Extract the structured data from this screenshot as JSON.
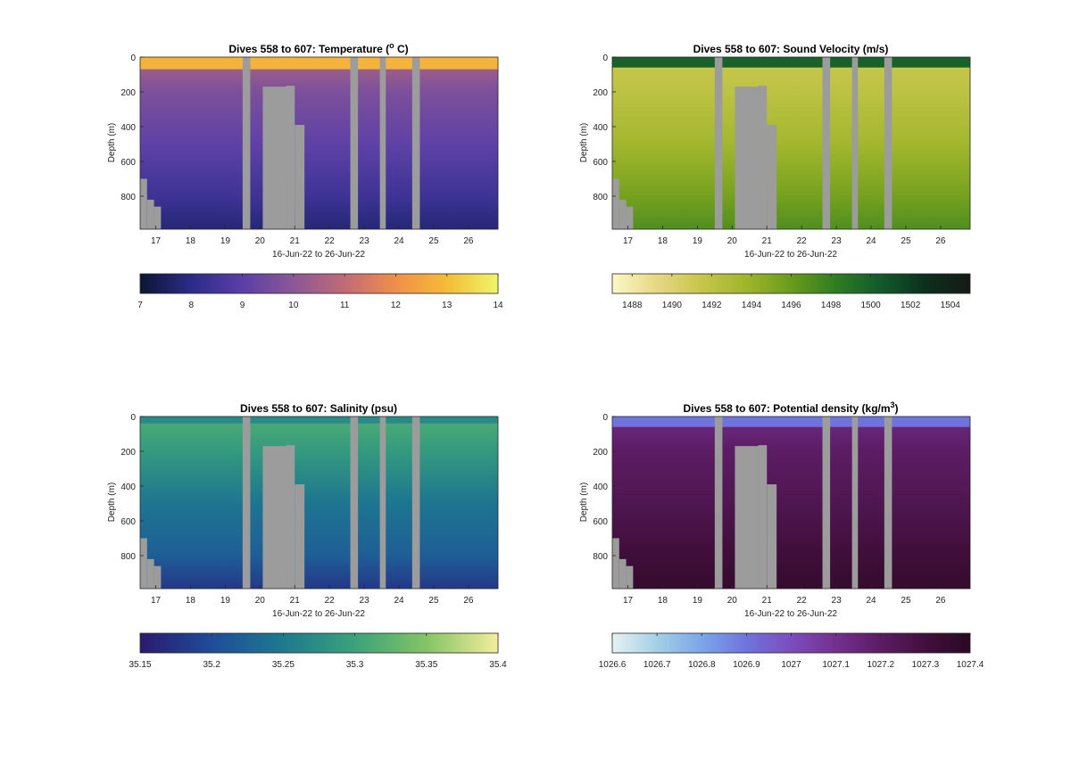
{
  "chart_data": [
    {
      "type": "heatmap",
      "title": "Dives 558 to 607: Temperature (",
      "title_sup": "o",
      "title_after": " C)",
      "xlabel": "16-Jun-22 to 26-Jun-22",
      "ylabel": "Depth (m)",
      "x_ticks": [
        "17",
        "18",
        "19",
        "20",
        "21",
        "22",
        "23",
        "24",
        "25",
        "26"
      ],
      "y_ticks": [
        "0",
        "200",
        "400",
        "600",
        "800"
      ],
      "xlim": [
        16.55,
        26.85
      ],
      "ylim": [
        0,
        990
      ],
      "surface_layer": {
        "depth_to": 70,
        "value": 12.8
      },
      "depth_profile": [
        {
          "depth": 70,
          "value": 10.3
        },
        {
          "depth": 200,
          "value": 9.7
        },
        {
          "depth": 500,
          "value": 9.1
        },
        {
          "depth": 800,
          "value": 8.4
        },
        {
          "depth": 990,
          "value": 7.8
        }
      ],
      "colorbar": {
        "min": 7,
        "max": 14,
        "tick_values": [
          7,
          8,
          9,
          10,
          11,
          12,
          13,
          14
        ],
        "tick_labels": [
          "7",
          "8",
          "9",
          "10",
          "11",
          "12",
          "13",
          "14"
        ],
        "colors": [
          "#0b1631",
          "#2c2b89",
          "#5a3fa8",
          "#8b5796",
          "#c06b75",
          "#f18e4a",
          "#f5bc37",
          "#eef56a"
        ]
      }
    },
    {
      "type": "heatmap",
      "title": "Dives 558 to 607: Sound Velocity (m/s)",
      "xlabel": "16-Jun-22 to 26-Jun-22",
      "ylabel": "Depth (m)",
      "x_ticks": [
        "17",
        "18",
        "19",
        "20",
        "21",
        "22",
        "23",
        "24",
        "25",
        "26"
      ],
      "y_ticks": [
        "0",
        "200",
        "400",
        "600",
        "800"
      ],
      "xlim": [
        16.55,
        26.85
      ],
      "ylim": [
        0,
        990
      ],
      "surface_layer": {
        "depth_to": 60,
        "value": 1500
      },
      "depth_profile": [
        {
          "depth": 60,
          "value": 1491.5
        },
        {
          "depth": 200,
          "value": 1492
        },
        {
          "depth": 500,
          "value": 1493.5
        },
        {
          "depth": 800,
          "value": 1495.5
        },
        {
          "depth": 990,
          "value": 1497
        }
      ],
      "colorbar": {
        "min": 1487,
        "max": 1505,
        "tick_values": [
          1488,
          1490,
          1492,
          1494,
          1496,
          1498,
          1500,
          1502,
          1504
        ],
        "tick_labels": [
          "1488",
          "1490",
          "1492",
          "1494",
          "1496",
          "1498",
          "1500",
          "1502",
          "1504"
        ],
        "colors": [
          "#fcf7c6",
          "#e5d884",
          "#c6c64a",
          "#9fb52a",
          "#6a9b1c",
          "#2f7d22",
          "#125a2c",
          "#0c2f1c",
          "#151a16"
        ]
      }
    },
    {
      "type": "heatmap",
      "title": "Dives 558 to 607: Salinity (psu)",
      "xlabel": "16-Jun-22 to 26-Jun-22",
      "ylabel": "Depth (m)",
      "x_ticks": [
        "17",
        "18",
        "19",
        "20",
        "21",
        "22",
        "23",
        "24",
        "25",
        "26"
      ],
      "y_ticks": [
        "0",
        "200",
        "400",
        "600",
        "800"
      ],
      "xlim": [
        16.55,
        26.85
      ],
      "ylim": [
        0,
        990
      ],
      "surface_layer": {
        "depth_to": 40,
        "value": 35.27
      },
      "depth_profile": [
        {
          "depth": 40,
          "value": 35.31
        },
        {
          "depth": 200,
          "value": 35.29
        },
        {
          "depth": 500,
          "value": 35.245
        },
        {
          "depth": 800,
          "value": 35.22
        },
        {
          "depth": 990,
          "value": 35.18
        }
      ],
      "colorbar": {
        "min": 35.15,
        "max": 35.4,
        "tick_values": [
          35.15,
          35.2,
          35.25,
          35.3,
          35.35,
          35.4
        ],
        "tick_labels": [
          "35.15",
          "35.2",
          "35.25",
          "35.3",
          "35.35",
          "35.4"
        ],
        "colors": [
          "#2a1a6e",
          "#1f4c9a",
          "#1d7a8f",
          "#3aa27a",
          "#84c466",
          "#f3ee9b"
        ]
      }
    },
    {
      "type": "heatmap",
      "title": "Dives 558 to 607: Potential density (kg/m",
      "title_sup": "3",
      "title_after": ")",
      "xlabel": "16-Jun-22 to 26-Jun-22",
      "ylabel": "Depth (m)",
      "x_ticks": [
        "17",
        "18",
        "19",
        "20",
        "21",
        "22",
        "23",
        "24",
        "25",
        "26"
      ],
      "y_ticks": [
        "0",
        "200",
        "400",
        "600",
        "800"
      ],
      "xlim": [
        16.55,
        26.85
      ],
      "ylim": [
        0,
        990
      ],
      "surface_layer": {
        "depth_to": 60,
        "value": 1026.9
      },
      "depth_profile": [
        {
          "depth": 60,
          "value": 1027.15
        },
        {
          "depth": 200,
          "value": 1027.2
        },
        {
          "depth": 500,
          "value": 1027.25
        },
        {
          "depth": 750,
          "value": 1027.3
        },
        {
          "depth": 990,
          "value": 1027.36
        }
      ],
      "colorbar": {
        "min": 1026.6,
        "max": 1027.4,
        "tick_values": [
          1026.6,
          1026.7,
          1026.8,
          1026.9,
          1027,
          1027.1,
          1027.2,
          1027.3,
          1027.4
        ],
        "tick_labels": [
          "1026.6",
          "1026.7",
          "1026.8",
          "1026.9",
          "1027",
          "1027.1",
          "1027.2",
          "1027.3",
          "1027.4"
        ],
        "colors": [
          "#e5f2f2",
          "#a4d0e6",
          "#7aa6ea",
          "#6f74dc",
          "#7c4cbd",
          "#74308f",
          "#5c1c64",
          "#420f3d",
          "#2a0822"
        ]
      }
    }
  ],
  "shared": {
    "no_data_color": "#9c9c9c",
    "gap_bands": [
      [
        19.5,
        19.72
      ],
      [
        20.08,
        20.75
      ],
      [
        20.75,
        21.0
      ],
      [
        21.0,
        21.28
      ],
      [
        22.6,
        22.82
      ],
      [
        23.45,
        23.62
      ],
      [
        24.38,
        24.6
      ]
    ],
    "gap_tops_depth": [
      0,
      170,
      165,
      390,
      0,
      0,
      0
    ],
    "left_floor_steps": [
      [
        16.55,
        16.75,
        700
      ],
      [
        16.75,
        16.95,
        820
      ],
      [
        16.95,
        17.15,
        860
      ]
    ]
  }
}
